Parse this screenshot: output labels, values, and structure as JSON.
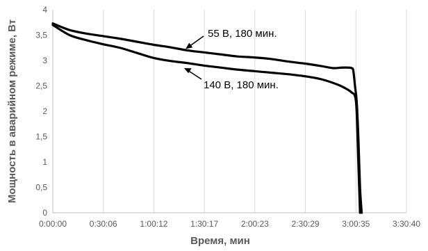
{
  "chart_data": {
    "type": "line",
    "xlabel": "Время, мин",
    "ylabel": "Мощность в аварийном режиме, Вт",
    "x_tick_labels": [
      "0:00:00",
      "0:30:06",
      "1:00:12",
      "1:30:17",
      "2:00:23",
      "2:30:29",
      "3:00:35",
      "3:30:40"
    ],
    "x_tick_values_min": [
      0,
      30.1,
      60.2,
      90.28,
      120.38,
      150.48,
      180.58,
      210.67
    ],
    "xlim_min": [
      0,
      210.67
    ],
    "y_tick_labels": [
      "0",
      "0,5",
      "1",
      "1,5",
      "2",
      "2,5",
      "3",
      "3,5",
      "4"
    ],
    "y_tick_values": [
      0,
      0.5,
      1,
      1.5,
      2,
      2.5,
      3,
      3.5,
      4
    ],
    "ylim": [
      0,
      4
    ],
    "grid": {
      "vertical": true,
      "horizontal": false
    },
    "legend": "none",
    "series": [
      {
        "x": [
          0,
          10,
          20,
          30,
          40,
          50,
          60,
          70,
          80,
          90,
          100,
          110,
          120,
          130,
          140,
          150,
          160,
          167,
          172,
          176,
          178,
          179,
          180,
          181,
          182,
          183,
          184
        ],
        "y": [
          3.73,
          3.6,
          3.53,
          3.48,
          3.43,
          3.37,
          3.31,
          3.26,
          3.2,
          3.16,
          3.12,
          3.08,
          3.06,
          3.03,
          2.98,
          2.94,
          2.89,
          2.85,
          2.86,
          2.86,
          2.85,
          2.8,
          2.5,
          2.2,
          1.5,
          0.5,
          0
        ]
      },
      {
        "x": [
          0,
          10,
          20,
          30,
          40,
          50,
          60,
          70,
          80,
          90,
          100,
          110,
          120,
          130,
          140,
          150,
          160,
          170,
          176,
          178,
          180,
          181,
          182,
          183
        ],
        "y": [
          3.7,
          3.5,
          3.4,
          3.32,
          3.25,
          3.15,
          3.05,
          2.99,
          2.95,
          2.9,
          2.86,
          2.82,
          2.79,
          2.76,
          2.73,
          2.69,
          2.63,
          2.52,
          2.42,
          2.37,
          2.3,
          2.0,
          1.0,
          0
        ]
      }
    ],
    "annotations": [
      {
        "text": "55 В, 180 мин."
      },
      {
        "text": "140 В, 180 мин."
      }
    ]
  }
}
